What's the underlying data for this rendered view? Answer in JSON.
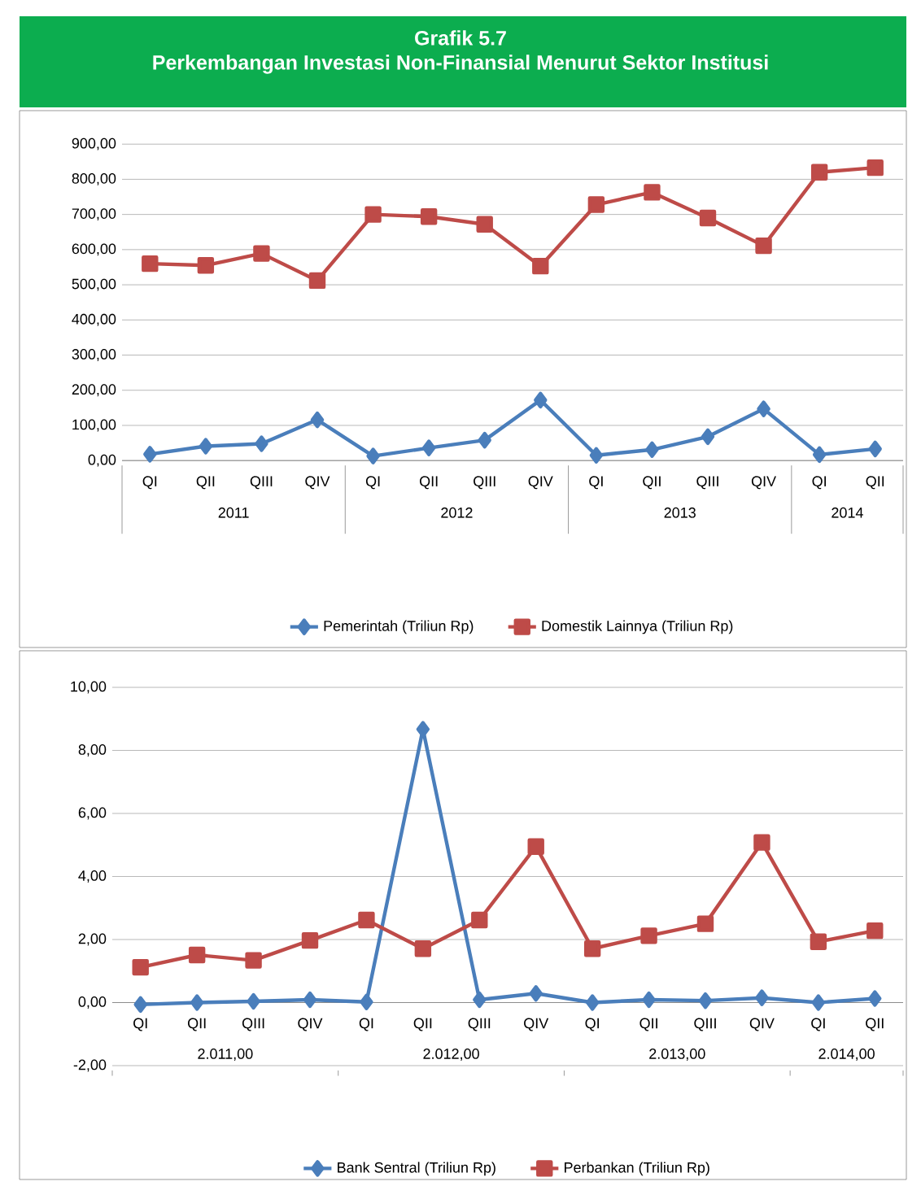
{
  "chart_data": [
    {
      "type": "line",
      "title": "Grafik 5.7",
      "subtitle": "Perkembangan Investasi Non-Finansial Menurut Sektor Institusi",
      "categories": [
        "QI",
        "QII",
        "QIII",
        "QIV",
        "QI",
        "QII",
        "QIII",
        "QIV",
        "QI",
        "QII",
        "QIII",
        "QIV",
        "QI",
        "QII"
      ],
      "annotations": [
        "2011",
        "2012",
        "2013",
        "2014"
      ],
      "series": [
        {
          "name": "Pemerintah (Triliun Rp)",
          "color": "#4a7ebb",
          "marker": "diamond",
          "values": [
            18,
            41,
            48,
            116,
            13,
            36,
            58,
            172,
            15,
            31,
            68,
            147,
            17,
            33
          ]
        },
        {
          "name": "Domestik Lainnya (Triliun Rp)",
          "color": "#be4b48",
          "marker": "square",
          "values": [
            560,
            555,
            589,
            512,
            700,
            694,
            672,
            553,
            728,
            763,
            690,
            611,
            820,
            833
          ]
        }
      ],
      "ylim": [
        0,
        900
      ],
      "yticks": [
        {
          "value": 0,
          "label": "0,00"
        },
        {
          "value": 100,
          "label": "100,00"
        },
        {
          "value": 200,
          "label": "200,00"
        },
        {
          "value": 300,
          "label": "300,00"
        },
        {
          "value": 400,
          "label": "400,00"
        },
        {
          "value": 500,
          "label": "500,00"
        },
        {
          "value": 600,
          "label": "600,00"
        },
        {
          "value": 700,
          "label": "700,00"
        },
        {
          "value": 800,
          "label": "800,00"
        },
        {
          "value": 900,
          "label": "900,00"
        }
      ],
      "grid": "y",
      "legend": "bottom",
      "line_style": "solid"
    },
    {
      "type": "line",
      "categories": [
        "QI",
        "QII",
        "QIII",
        "QIV",
        "QI",
        "QII",
        "QIII",
        "QIV",
        "QI",
        "QII",
        "QIII",
        "QIV",
        "QI",
        "QII"
      ],
      "annotations": [
        "2.011,00",
        "2.012,00",
        "2.013,00",
        "2.014,00"
      ],
      "series": [
        {
          "name": "Bank Sentral (Triliun Rp)",
          "color": "#4a7ebb",
          "marker": "diamond",
          "values": [
            -0.06,
            0,
            0.04,
            0.09,
            0.02,
            8.67,
            0.09,
            0.29,
            0,
            0.09,
            0.06,
            0.15,
            0,
            0.13
          ]
        },
        {
          "name": "Perbankan (Triliun Rp)",
          "color": "#be4b48",
          "marker": "square",
          "values": [
            1.12,
            1.51,
            1.34,
            1.97,
            2.62,
            1.71,
            2.62,
            4.95,
            1.71,
            2.12,
            2.5,
            5.08,
            1.93,
            2.28
          ]
        }
      ],
      "ylim": [
        -2,
        10
      ],
      "yticks": [
        {
          "value": -2,
          "label": "-2,00"
        },
        {
          "value": 0,
          "label": "0,00"
        },
        {
          "value": 2,
          "label": "2,00"
        },
        {
          "value": 4,
          "label": "4,00"
        },
        {
          "value": 6,
          "label": "6,00"
        },
        {
          "value": 8,
          "label": "8,00"
        },
        {
          "value": 10,
          "label": "10,00"
        }
      ],
      "grid": "y",
      "legend": "bottom",
      "line_style": "solid"
    }
  ]
}
